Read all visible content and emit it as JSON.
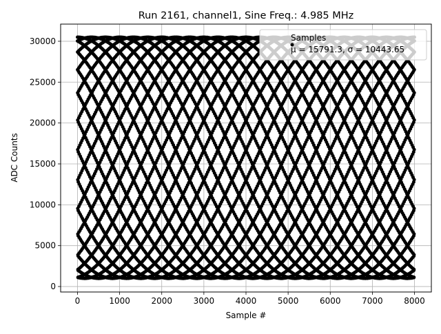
{
  "chart_data": {
    "type": "scatter",
    "title": "Run 2161, channel1, Sine Freq.: 4.985 MHz",
    "xlabel": "Sample #",
    "ylabel": "ADC Counts",
    "xlim": [
      -400,
      8400
    ],
    "ylim": [
      -670,
      32100
    ],
    "xticks": [
      0,
      1000,
      2000,
      3000,
      4000,
      5000,
      6000,
      7000,
      8000
    ],
    "yticks": [
      0,
      5000,
      10000,
      15000,
      20000,
      25000,
      30000
    ],
    "grid": true,
    "legend_placement": "upper right",
    "series": [
      {
        "name": "Samples",
        "legend_stats": "μ = 15791.3, σ = 10443.65",
        "color": "#000000",
        "marker": "circle",
        "signal": {
          "form": "sine",
          "sample_count": 8000,
          "first_sample": 0,
          "offset": 15750,
          "amplitude": 14750,
          "cycles_per_sample": 0.03988,
          "phase_cycles": 0.25
        }
      }
    ]
  }
}
